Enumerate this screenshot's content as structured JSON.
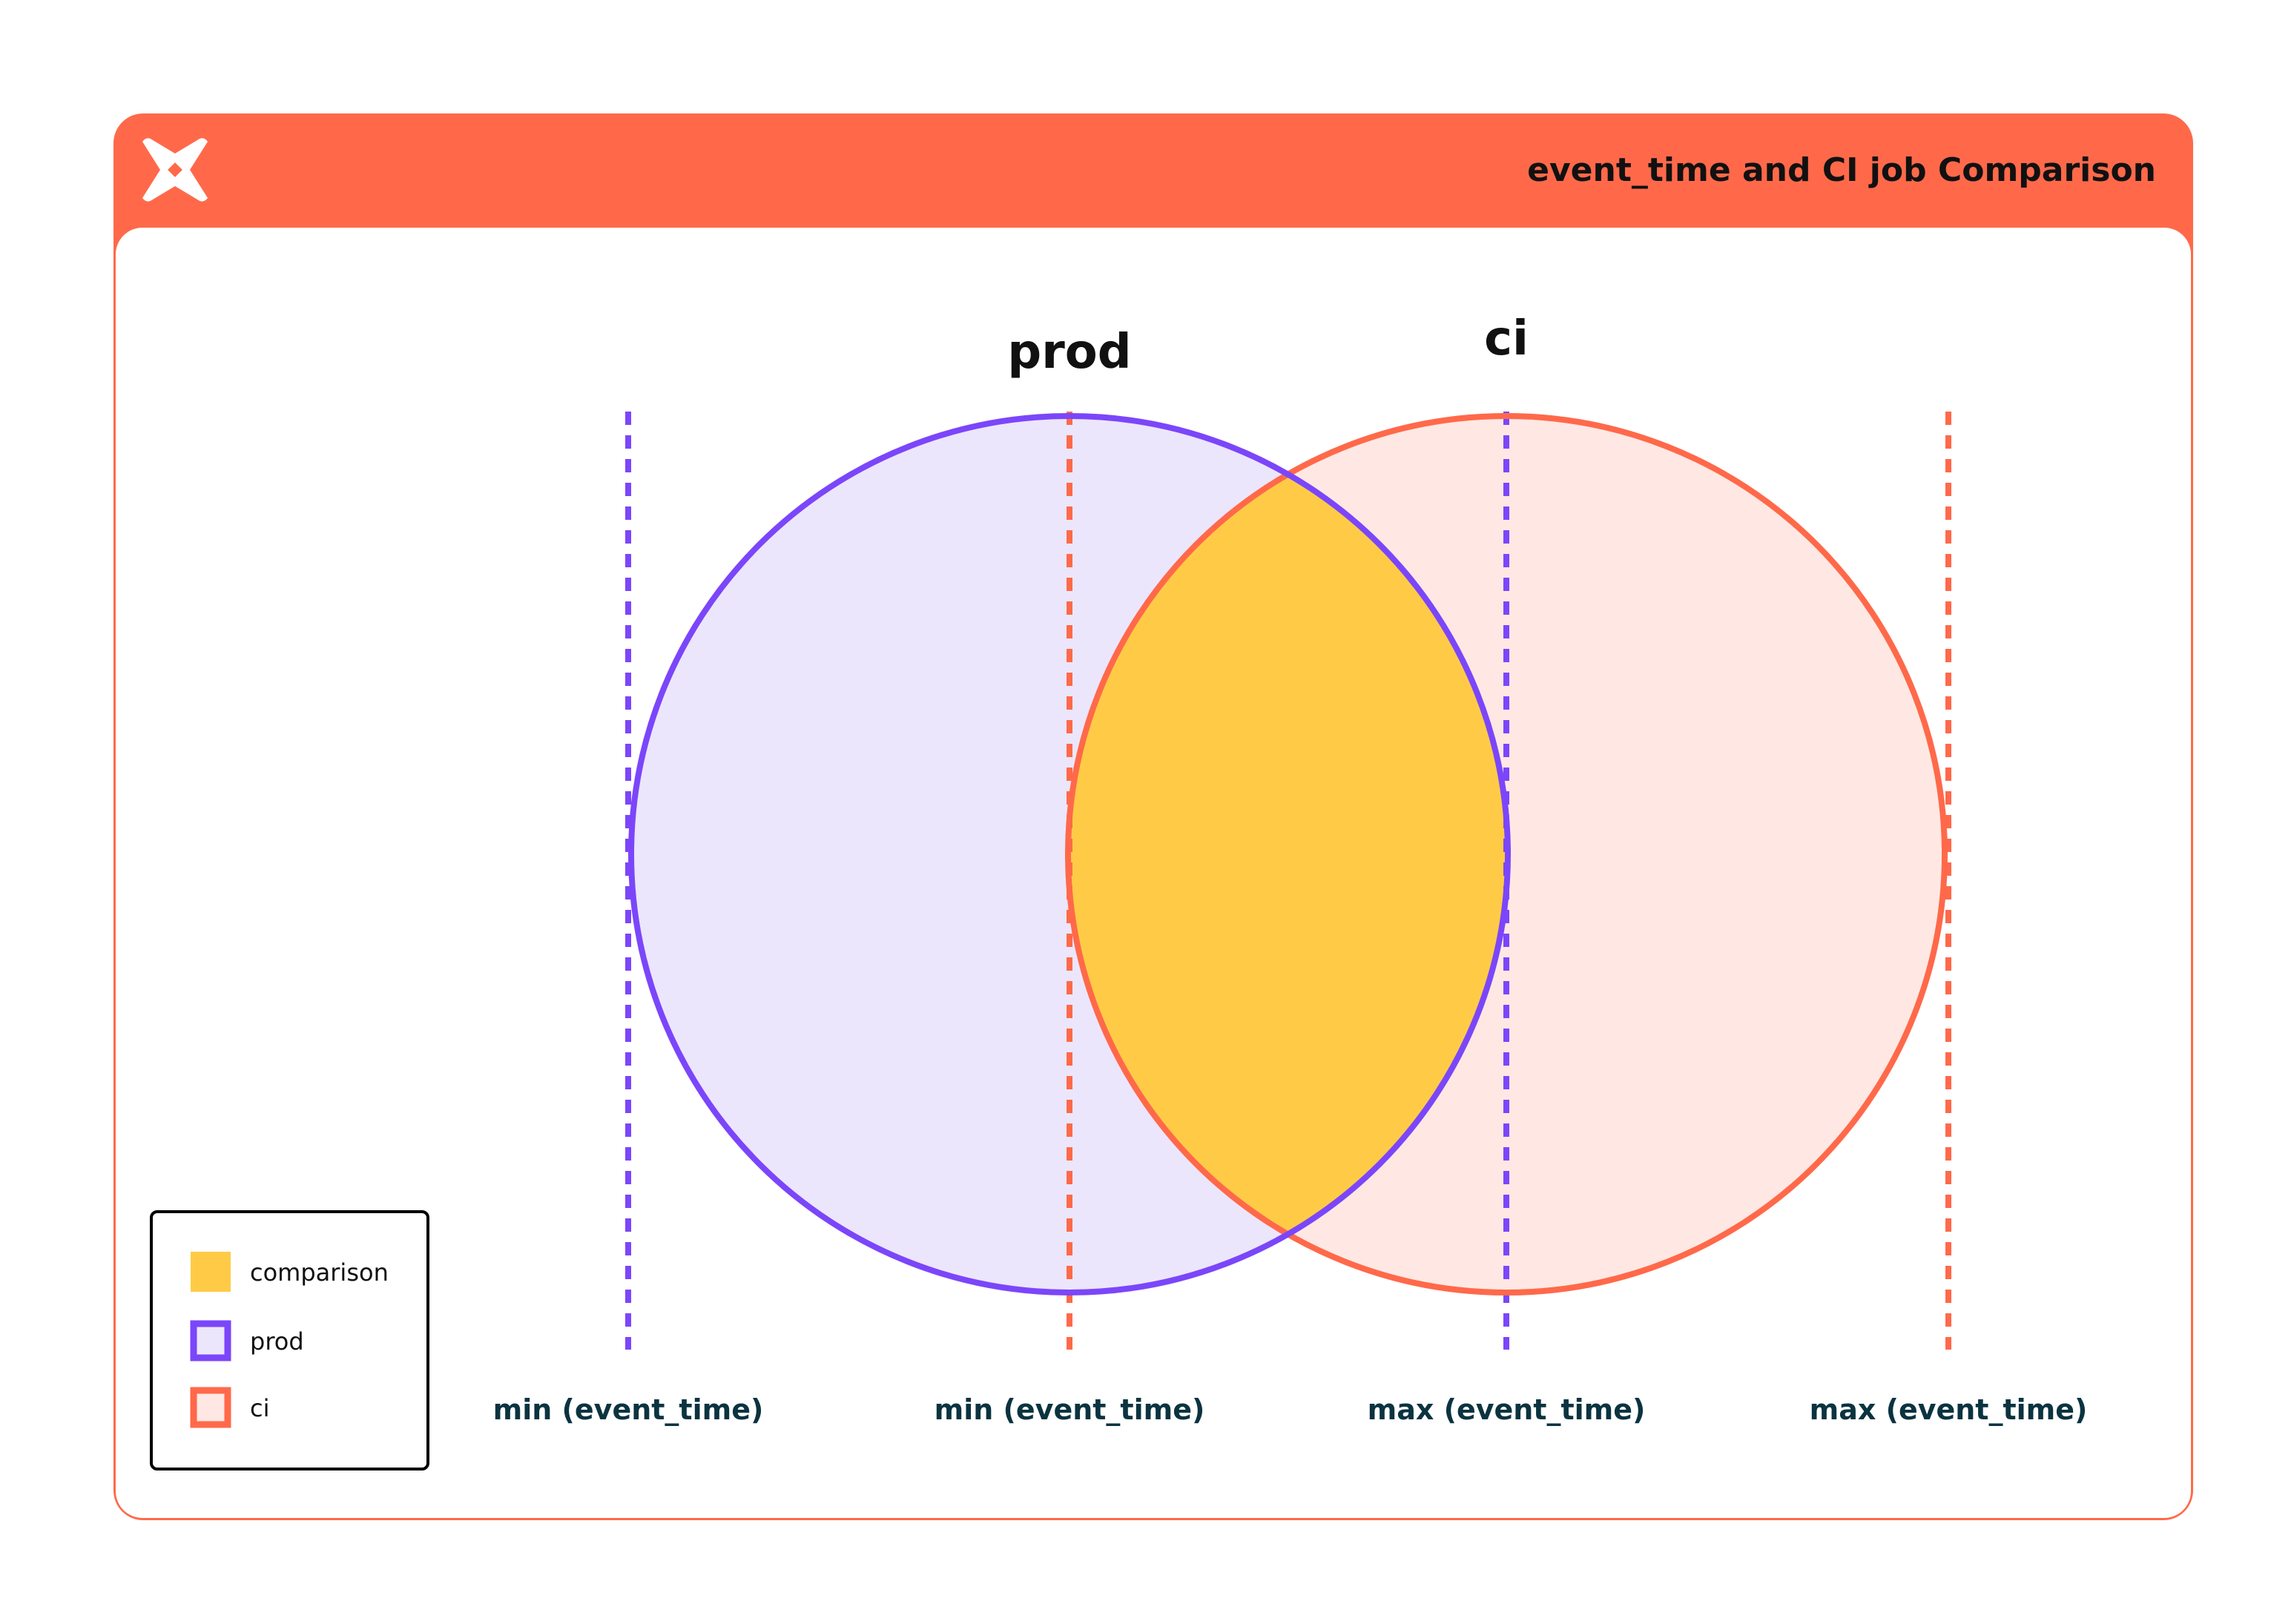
{
  "header": {
    "title": "event_time and CI job Comparison",
    "logo": "dbt-logo-icon"
  },
  "diagram": {
    "sets": [
      {
        "name": "prod",
        "label": "prod",
        "fill": "#ECE6FC",
        "stroke": "#7B46FA"
      },
      {
        "name": "ci",
        "label": "ci",
        "fill": "#FFE8E3",
        "stroke": "#FF694A"
      }
    ],
    "intersection": {
      "label": "comparison",
      "fill": "#FFCB47"
    },
    "markers": [
      {
        "label": "min (event_time)",
        "set": "prod",
        "color": "#7B46FA"
      },
      {
        "label": "min (event_time)",
        "set": "ci",
        "color": "#FF694A"
      },
      {
        "label": "max (event_time)",
        "set": "prod",
        "color": "#7B46FA"
      },
      {
        "label": "max (event_time)",
        "set": "ci",
        "color": "#FF694A"
      }
    ]
  },
  "legend": {
    "items": [
      {
        "label": "comparison",
        "fill": "#FFCB47"
      },
      {
        "label": "prod",
        "fill": "#ECE6FC",
        "stroke": "#7B46FA"
      },
      {
        "label": "ci",
        "fill": "#FFE8E3",
        "stroke": "#FF694A"
      }
    ]
  },
  "colors": {
    "accent": "#FF694A",
    "label_text": "#0B3340"
  }
}
